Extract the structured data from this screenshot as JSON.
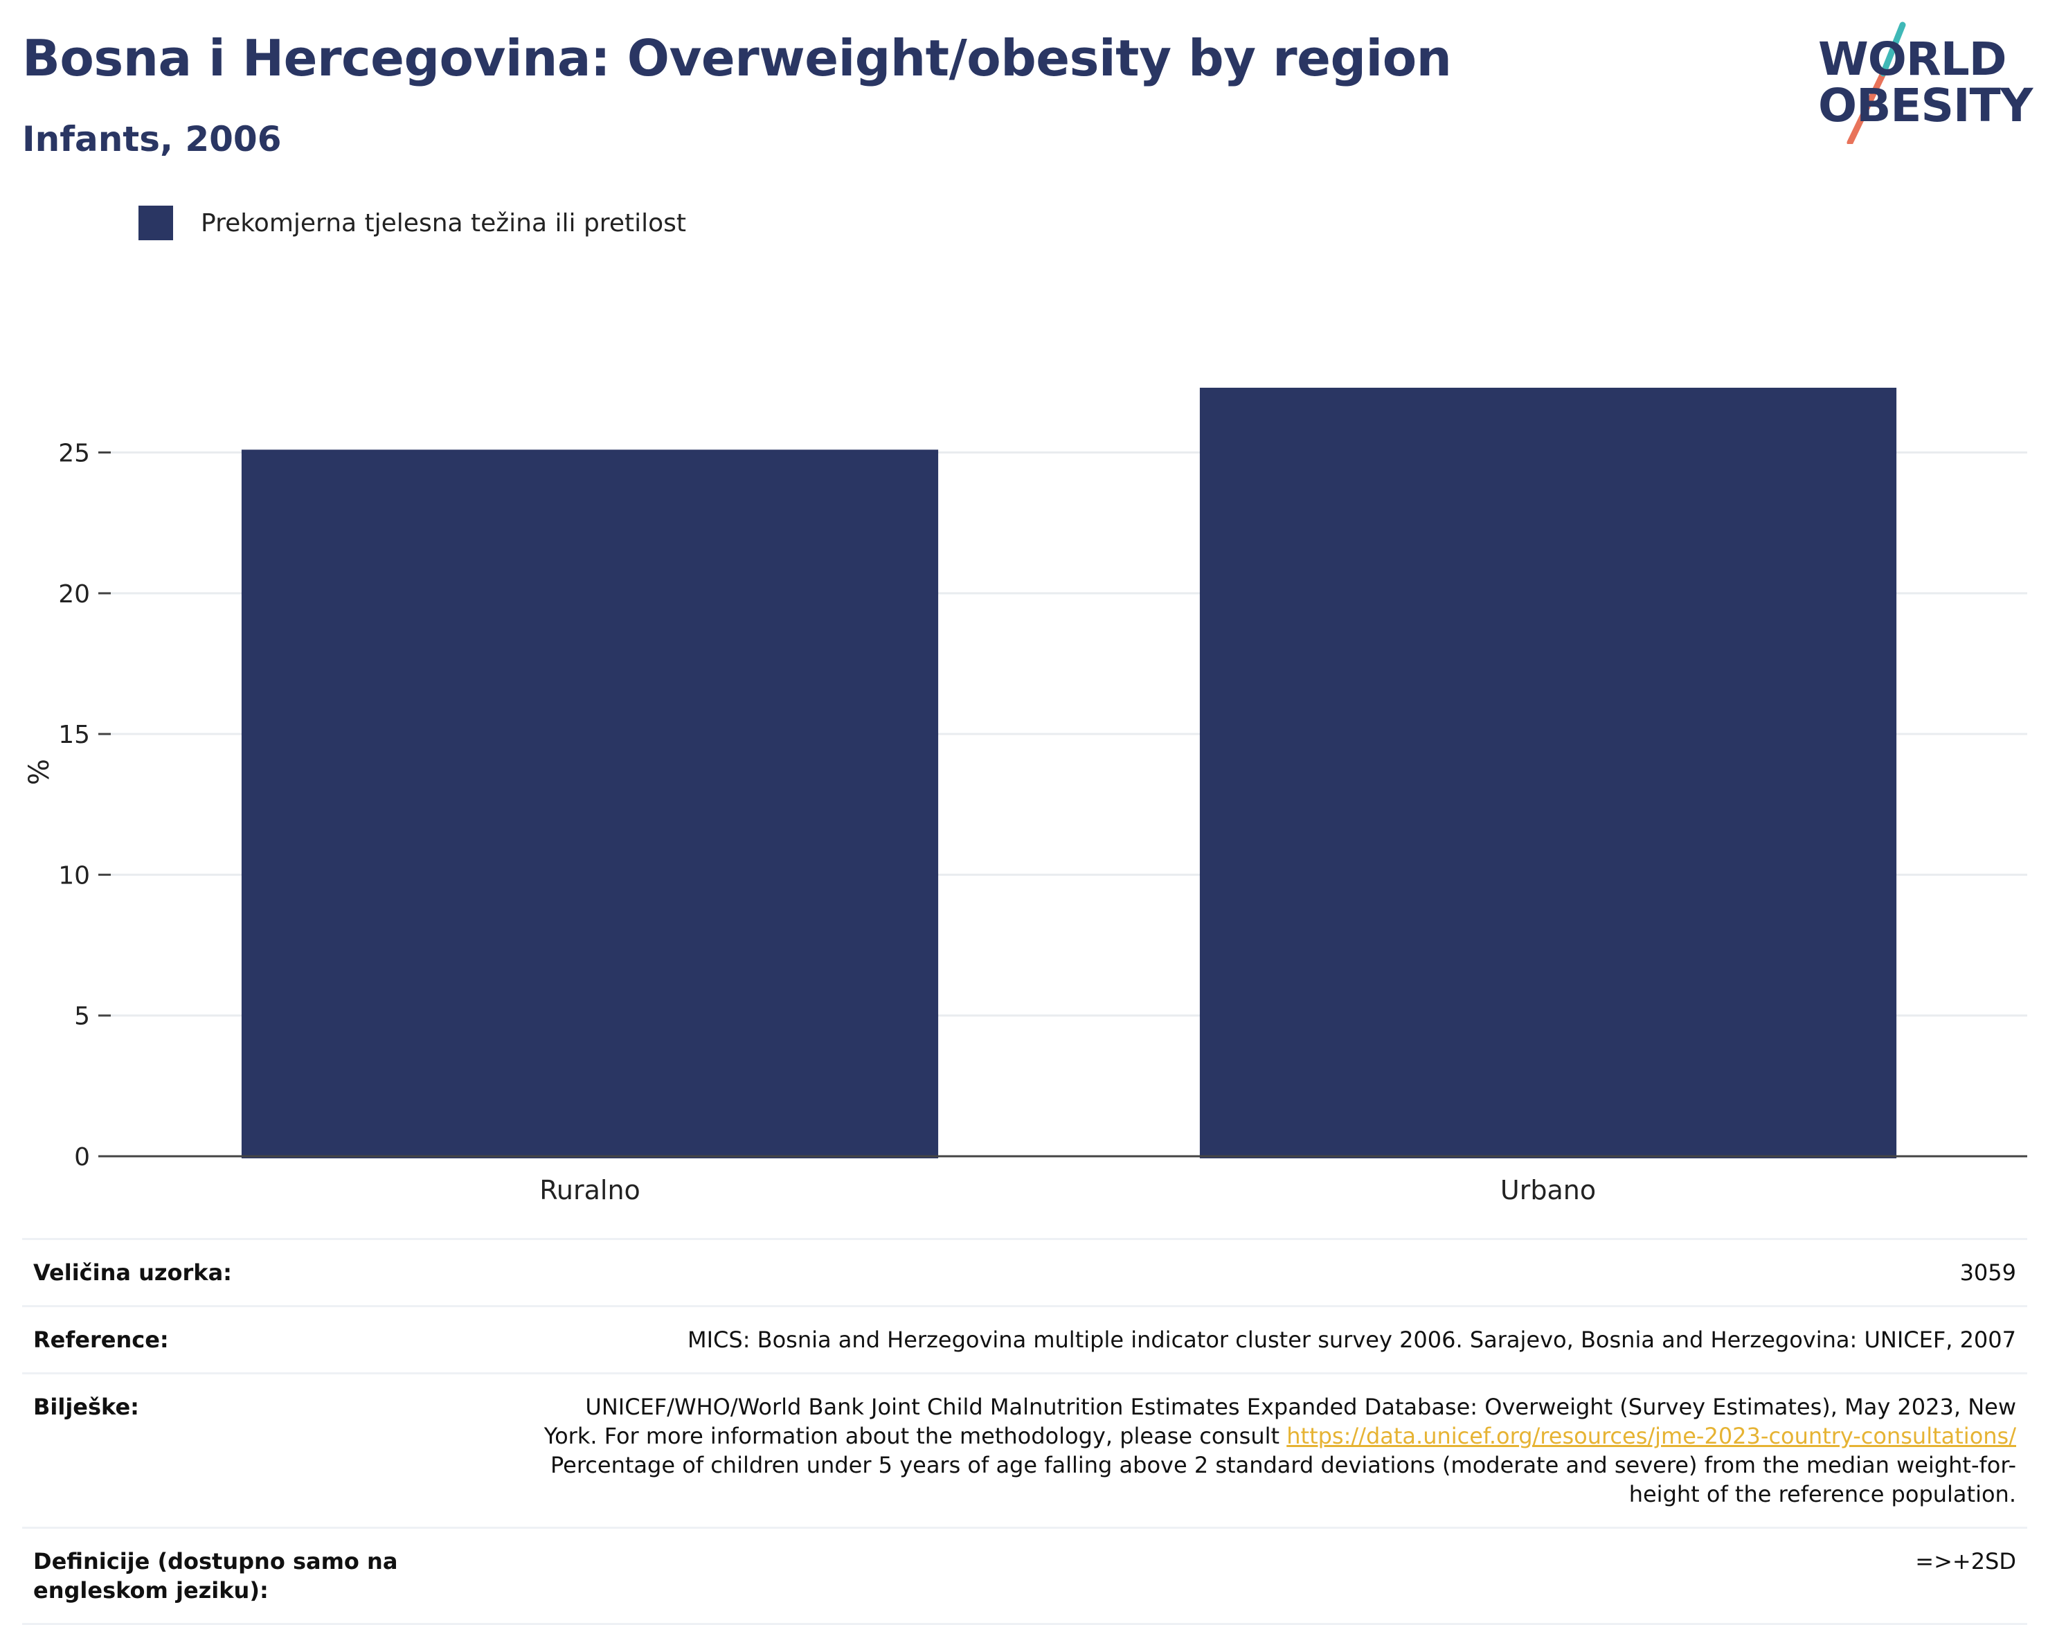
{
  "header": {
    "title": "Bosna i Hercegovina: Overweight/obesity by region",
    "subtitle": "Infants, 2006"
  },
  "logo": {
    "line1": "WORLD",
    "line2": "OBESITY",
    "colors": {
      "text": "#2a3663",
      "slash_teal": "#3fb8b7",
      "slash_red": "#e8735a"
    }
  },
  "chart_data": {
    "type": "bar",
    "categories": [
      "Ruralno",
      "Urbano"
    ],
    "series": [
      {
        "name": "Prekomjerna tjelesna težina ili pretilost",
        "values": [
          25.1,
          27.3
        ],
        "color": "#2a3663"
      }
    ],
    "ylabel": "%",
    "xlabel": "",
    "ylim": [
      0,
      27.3
    ],
    "yticks": [
      0,
      5,
      10,
      15,
      20,
      25
    ],
    "grid": true,
    "legend_position": "top-left"
  },
  "meta": {
    "rows": [
      {
        "key": "Veličina uzorka:",
        "value": "3059"
      },
      {
        "key": "Reference:",
        "value": "MICS: Bosnia and Herzegovina multiple indicator cluster survey 2006. Sarajevo, Bosnia and Herzegovina: UNICEF, 2007"
      },
      {
        "key": "Bilješke:",
        "value_pre": "UNICEF/WHO/World Bank Joint Child Malnutrition Estimates Expanded Database: Overweight (Survey Estimates), May 2023, New York. For more information about the methodology, please consult ",
        "link": "https://data.unicef.org/resources/jme-2023-country-consultations/",
        "value_post": "Percentage of children under 5 years of age falling above 2 standard deviations (moderate and severe) from the median weight-for-height of the reference population."
      },
      {
        "key": "Definicije (dostupno samo na engleskom jeziku):",
        "value": "=>+2SD"
      }
    ]
  }
}
